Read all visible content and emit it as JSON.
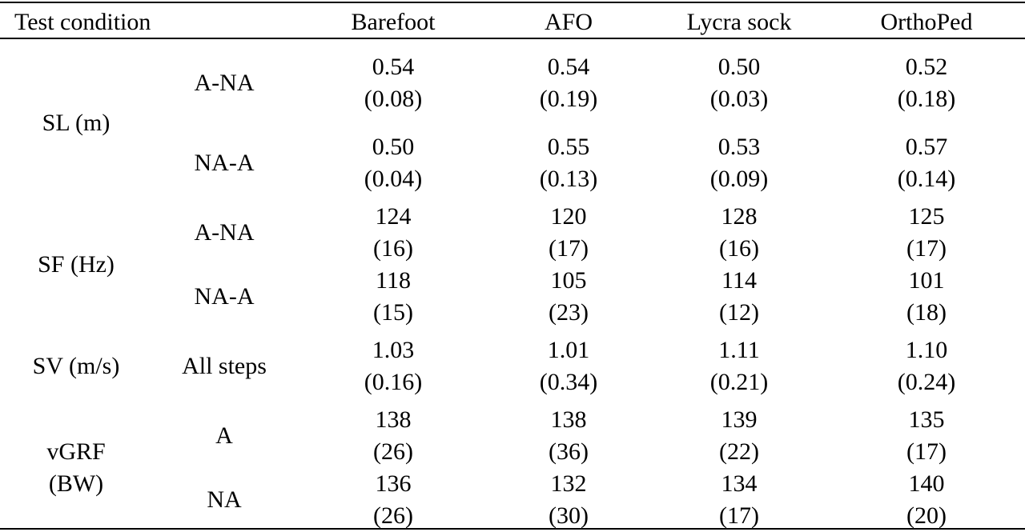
{
  "table": {
    "header": {
      "test_condition": "Test condition",
      "columns": [
        "Barefoot",
        "AFO",
        "Lycra sock",
        "OrthoPed"
      ]
    },
    "groups": [
      {
        "label_lines": [
          "SL (m)"
        ],
        "rows": [
          {
            "sub": "A-NA",
            "values": [
              [
                "0.54",
                "(0.08)"
              ],
              [
                "0.54",
                "(0.19)"
              ],
              [
                "0.50",
                "(0.03)"
              ],
              [
                "0.52",
                "(0.18)"
              ]
            ]
          },
          {
            "sub": "NA-A",
            "values": [
              [
                "0.50",
                "(0.04)"
              ],
              [
                "0.55",
                "(0.13)"
              ],
              [
                "0.53",
                "(0.09)"
              ],
              [
                "0.57",
                "(0.14)"
              ]
            ]
          }
        ]
      },
      {
        "label_lines": [
          "SF (Hz)"
        ],
        "rows": [
          {
            "sub": "A-NA",
            "values": [
              [
                "124",
                "(16)"
              ],
              [
                "120",
                "(17)"
              ],
              [
                "128",
                "(16)"
              ],
              [
                "125",
                "(17)"
              ]
            ]
          },
          {
            "sub": "NA-A",
            "values": [
              [
                "118",
                "(15)"
              ],
              [
                "105",
                "(23)"
              ],
              [
                "114",
                "(12)"
              ],
              [
                "101",
                "(18)"
              ]
            ]
          }
        ]
      },
      {
        "label_lines": [
          "SV (m/s)"
        ],
        "rows": [
          {
            "sub": "All steps",
            "values": [
              [
                "1.03",
                "(0.16)"
              ],
              [
                "1.01",
                "(0.34)"
              ],
              [
                "1.11",
                "(0.21)"
              ],
              [
                "1.10",
                "(0.24)"
              ]
            ]
          }
        ]
      },
      {
        "label_lines": [
          "vGRF",
          "(BW)"
        ],
        "rows": [
          {
            "sub": "A",
            "values": [
              [
                "138",
                "(26)"
              ],
              [
                "138",
                "(36)"
              ],
              [
                "139",
                "(22)"
              ],
              [
                "135",
                "(17)"
              ]
            ]
          },
          {
            "sub": "NA",
            "values": [
              [
                "136",
                "(26)"
              ],
              [
                "132",
                "(30)"
              ],
              [
                "134",
                "(17)"
              ],
              [
                "140",
                "(20)"
              ]
            ]
          }
        ]
      }
    ]
  }
}
